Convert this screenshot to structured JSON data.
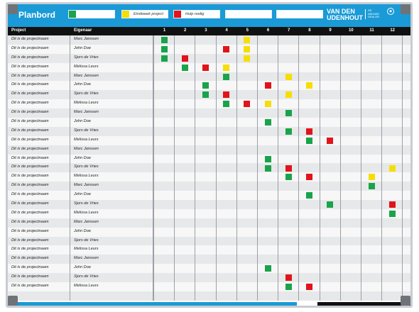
{
  "header": {
    "title": "Planbord",
    "legend": [
      {
        "color": "#1aa34a",
        "label": ""
      },
      {
        "color": "#f5de05",
        "label": "Eindweek project"
      },
      {
        "color": "#e0141a",
        "label": "Hulp nodig"
      },
      {
        "color": "",
        "label": ""
      },
      {
        "color": "",
        "label": ""
      }
    ],
    "brand_line1": "VAN DEN",
    "brand_line2": "UDENHOUT",
    "brand_tag1": "DE",
    "brand_tag2": "NIEUWE",
    "brand_tag3": "DEALER."
  },
  "columns": {
    "project": "Project",
    "owner": "Eigenaar",
    "weeks": [
      "1",
      "2",
      "3",
      "4",
      "5",
      "6",
      "7",
      "8",
      "9",
      "10",
      "11",
      "12"
    ]
  },
  "colors": {
    "green": "#1aa34a",
    "yellow": "#f5de05",
    "red": "#e0141a",
    "blue": "#1a9ad6"
  },
  "rows": [
    {
      "project": "Dit is de projectnaam",
      "owner": "Marc Janssen",
      "marks": [
        {
          "w": 1,
          "c": "green"
        },
        {
          "w": 5,
          "c": "yellow"
        }
      ]
    },
    {
      "project": "Dit is de projectnaam",
      "owner": "John Doe",
      "marks": [
        {
          "w": 1,
          "c": "green"
        },
        {
          "w": 4,
          "c": "red"
        },
        {
          "w": 5,
          "c": "yellow"
        }
      ]
    },
    {
      "project": "Dit is de projectnaam",
      "owner": "Sjors de Vries",
      "marks": [
        {
          "w": 1,
          "c": "green"
        },
        {
          "w": 2,
          "c": "red"
        },
        {
          "w": 5,
          "c": "yellow"
        }
      ]
    },
    {
      "project": "Dit is de projectnaam",
      "owner": "Melissa Leurs",
      "marks": [
        {
          "w": 2,
          "c": "green"
        },
        {
          "w": 3,
          "c": "red"
        },
        {
          "w": 4,
          "c": "yellow"
        }
      ]
    },
    {
      "project": "Dit is de projectnaam",
      "owner": "Marc Janssen",
      "marks": [
        {
          "w": 4,
          "c": "green"
        },
        {
          "w": 7,
          "c": "yellow"
        }
      ]
    },
    {
      "project": "Dit is de projectnaam",
      "owner": "John Doe",
      "marks": [
        {
          "w": 3,
          "c": "green"
        },
        {
          "w": 6,
          "c": "red"
        },
        {
          "w": 8,
          "c": "yellow"
        }
      ]
    },
    {
      "project": "Dit is de projectnaam",
      "owner": "Sjors de Vries",
      "marks": [
        {
          "w": 3,
          "c": "green"
        },
        {
          "w": 4,
          "c": "red"
        },
        {
          "w": 7,
          "c": "yellow"
        }
      ]
    },
    {
      "project": "Dit is de projectnaam",
      "owner": "Melissa Leurs",
      "marks": [
        {
          "w": 4,
          "c": "green"
        },
        {
          "w": 5,
          "c": "red"
        },
        {
          "w": 6,
          "c": "yellow"
        }
      ]
    },
    {
      "project": "Dit is de projectnaam",
      "owner": "Marc Janssen",
      "marks": [
        {
          "w": 7,
          "c": "green"
        }
      ]
    },
    {
      "project": "Dit is de projectnaam",
      "owner": "John Doe",
      "marks": [
        {
          "w": 6,
          "c": "green"
        }
      ]
    },
    {
      "project": "Dit is de projectnaam",
      "owner": "Sjors de Vries",
      "marks": [
        {
          "w": 7,
          "c": "green"
        },
        {
          "w": 8,
          "c": "red"
        }
      ]
    },
    {
      "project": "Dit is de projectnaam",
      "owner": "Melissa Leurs",
      "marks": [
        {
          "w": 8,
          "c": "green"
        },
        {
          "w": 9,
          "c": "red"
        }
      ]
    },
    {
      "project": "Dit is de projectnaam",
      "owner": "Marc Janssen",
      "marks": []
    },
    {
      "project": "Dit is de projectnaam",
      "owner": "John Doe",
      "marks": [
        {
          "w": 6,
          "c": "green"
        }
      ]
    },
    {
      "project": "Dit is de projectnaam",
      "owner": "Sjors de Vries",
      "marks": [
        {
          "w": 6,
          "c": "green"
        },
        {
          "w": 7,
          "c": "red"
        },
        {
          "w": 12,
          "c": "yellow"
        }
      ]
    },
    {
      "project": "Dit is de projectnaam",
      "owner": "Melissa Leurs",
      "marks": [
        {
          "w": 7,
          "c": "green"
        },
        {
          "w": 8,
          "c": "red"
        },
        {
          "w": 11,
          "c": "yellow"
        }
      ]
    },
    {
      "project": "Dit is de projectnaam",
      "owner": "Marc Janssen",
      "marks": [
        {
          "w": 11,
          "c": "green"
        }
      ]
    },
    {
      "project": "Dit is de projectnaam",
      "owner": "John Doe",
      "marks": [
        {
          "w": 8,
          "c": "green"
        }
      ]
    },
    {
      "project": "Dit is de projectnaam",
      "owner": "Sjors de Vries",
      "marks": [
        {
          "w": 9,
          "c": "green"
        },
        {
          "w": 12,
          "c": "red"
        }
      ]
    },
    {
      "project": "Dit is de projectnaam",
      "owner": "Melissa Leurs",
      "marks": [
        {
          "w": 12,
          "c": "green"
        }
      ]
    },
    {
      "project": "Dit is de projectnaam",
      "owner": "Marc Janssen",
      "marks": []
    },
    {
      "project": "Dit is de projectnaam",
      "owner": "John Doe",
      "marks": []
    },
    {
      "project": "Dit is de projectnaam",
      "owner": "Sjors de Vries",
      "marks": []
    },
    {
      "project": "Dit is de projectnaam",
      "owner": "Melissa Leurs",
      "marks": []
    },
    {
      "project": "Dit is de projectnaam",
      "owner": "Marc Janssen",
      "marks": []
    },
    {
      "project": "Dit is de projectnaam",
      "owner": "John Doe",
      "marks": [
        {
          "w": 6,
          "c": "green"
        }
      ]
    },
    {
      "project": "Dit is de projectnaam",
      "owner": "Sjors de Vries",
      "marks": [
        {
          "w": 7,
          "c": "red"
        }
      ]
    },
    {
      "project": "Dit is de projectnaam",
      "owner": "Melissa Leurs",
      "marks": [
        {
          "w": 7,
          "c": "green"
        },
        {
          "w": 8,
          "c": "red"
        }
      ]
    },
    {
      "project": "",
      "owner": "",
      "marks": []
    }
  ]
}
